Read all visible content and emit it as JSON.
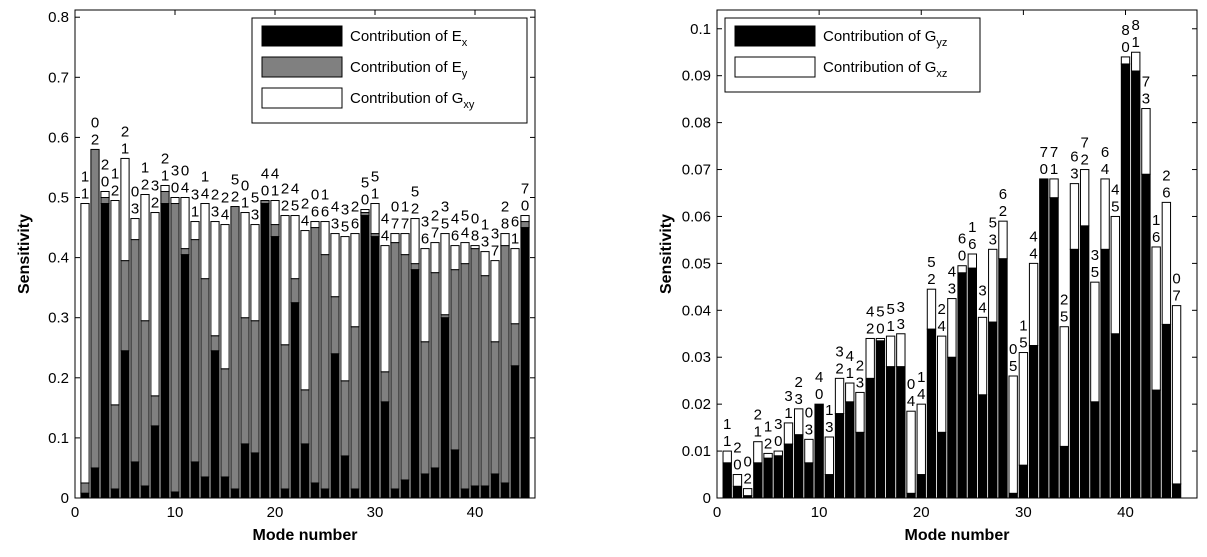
{
  "chart_data": [
    {
      "type": "stacked_bar",
      "ylabel": "Sensitivity",
      "xlabel": "Mode number",
      "xlim": [
        0,
        46
      ],
      "xticks": [
        0,
        10,
        20,
        30,
        40
      ],
      "ylim": [
        0,
        0.812
      ],
      "yticks": [
        0,
        0.1,
        0.2,
        0.3,
        0.4,
        0.5,
        0.6,
        0.7,
        0.8
      ],
      "legend": "upper right",
      "x": [
        1,
        2,
        3,
        4,
        5,
        6,
        7,
        8,
        9,
        10,
        11,
        12,
        13,
        14,
        15,
        16,
        17,
        18,
        19,
        20,
        21,
        22,
        23,
        24,
        25,
        26,
        27,
        28,
        29,
        30,
        31,
        32,
        33,
        34,
        35,
        36,
        37,
        38,
        39,
        40,
        41,
        42,
        43,
        44,
        45
      ],
      "series": [
        {
          "name": "Contribution of E",
          "subscript": "x",
          "color": "#000000",
          "values": [
            0.008,
            0.05,
            0.49,
            0.015,
            0.245,
            0.06,
            0.02,
            0.12,
            0.49,
            0.01,
            0.405,
            0.06,
            0.035,
            0.245,
            0.035,
            0.015,
            0.09,
            0.075,
            0.49,
            0.435,
            0.015,
            0.325,
            0.09,
            0.025,
            0.015,
            0.24,
            0.07,
            0.015,
            0.47,
            0.435,
            0.16,
            0.015,
            0.03,
            0.38,
            0.04,
            0.05,
            0.3,
            0.08,
            0.015,
            0.02,
            0.02,
            0.04,
            0.025,
            0.22,
            0.45
          ]
        },
        {
          "name": "Contribution of E",
          "subscript": "y",
          "color": "#808080",
          "values": [
            0.017,
            0.53,
            0.01,
            0.14,
            0.15,
            0.37,
            0.275,
            0.05,
            0.02,
            0.48,
            0.01,
            0.37,
            0.33,
            0.025,
            0.18,
            0.47,
            0.21,
            0.22,
            0.005,
            0.02,
            0.24,
            0.04,
            0.09,
            0.425,
            0.39,
            0.095,
            0.125,
            0.27,
            0.005,
            0.005,
            0.05,
            0.41,
            0.375,
            0.01,
            0.22,
            0.325,
            0.005,
            0.3,
            0.375,
            0.395,
            0.35,
            0.22,
            0.395,
            0.07,
            0.01
          ]
        },
        {
          "name": "Contribution of G",
          "subscript": "xy",
          "color": "#ffffff",
          "values": [
            0.465,
            0,
            0.01,
            0.34,
            0.17,
            0.035,
            0.21,
            0.305,
            0.01,
            0.01,
            0.085,
            0.03,
            0.125,
            0.19,
            0.24,
            0,
            0.175,
            0.16,
            0,
            0.04,
            0.215,
            0.105,
            0.265,
            0.01,
            0.055,
            0.105,
            0.24,
            0.155,
            0.005,
            0.05,
            0.21,
            0.015,
            0.035,
            0.075,
            0.155,
            0.05,
            0.135,
            0.04,
            0.035,
            0.005,
            0.04,
            0.135,
            0.02,
            0.125,
            0.01
          ]
        }
      ],
      "bar_labels": [
        [
          "1",
          "1"
        ],
        [
          "0",
          "2"
        ],
        [
          "2",
          "0"
        ],
        [
          "1",
          "2"
        ],
        [
          "2",
          "1"
        ],
        [
          "0",
          "3"
        ],
        [
          "1",
          "2"
        ],
        [
          "3",
          "2"
        ],
        [
          "2",
          "1"
        ],
        [
          "3",
          "0"
        ],
        [
          "0",
          "4"
        ],
        [
          "3",
          "1"
        ],
        [
          "1",
          "4"
        ],
        [
          "2",
          "3"
        ],
        [
          "2",
          "4"
        ],
        [
          "5",
          "2"
        ],
        [
          "0",
          "1"
        ],
        [
          "5",
          "3"
        ],
        [
          "4",
          "0"
        ],
        [
          "4",
          "1"
        ],
        [
          "2",
          "2"
        ],
        [
          "4",
          "5"
        ],
        [
          "2",
          "4"
        ],
        [
          "0",
          "6"
        ],
        [
          "1",
          "6"
        ],
        [
          "4",
          "3"
        ],
        [
          "3",
          "5"
        ],
        [
          "2",
          "6"
        ],
        [
          "5",
          "0"
        ],
        [
          "5",
          "1"
        ],
        [
          "4",
          "4"
        ],
        [
          "0",
          "7"
        ],
        [
          "1",
          "7"
        ],
        [
          "5",
          "2"
        ],
        [
          "3",
          "6"
        ],
        [
          "2",
          "7"
        ],
        [
          "3",
          "5"
        ],
        [
          "4",
          "6"
        ],
        [
          "5",
          "4"
        ],
        [
          "0",
          "8"
        ],
        [
          "1",
          "3"
        ],
        [
          "3",
          "7"
        ],
        [
          "2",
          "8"
        ],
        [
          "6",
          "1"
        ],
        [
          "7",
          "0"
        ]
      ]
    },
    {
      "type": "stacked_bar",
      "ylabel": "Sensitivity",
      "xlabel": "Mode number",
      "xlim": [
        0,
        47
      ],
      "xticks": [
        0,
        10,
        20,
        30,
        40
      ],
      "ylim": [
        0,
        0.104
      ],
      "yticks": [
        0,
        0.01,
        0.02,
        0.03,
        0.04,
        0.05,
        0.06,
        0.07,
        0.08,
        0.09,
        0.1
      ],
      "legend": "upper left",
      "x": [
        1,
        2,
        3,
        4,
        5,
        6,
        7,
        8,
        9,
        10,
        11,
        12,
        13,
        14,
        15,
        16,
        17,
        18,
        19,
        20,
        21,
        22,
        23,
        24,
        25,
        26,
        27,
        28,
        29,
        30,
        31,
        32,
        33,
        34,
        35,
        36,
        37,
        38,
        39,
        40,
        41,
        42,
        43,
        44,
        45
      ],
      "series": [
        {
          "name": "Contribution of G",
          "subscript": "yz",
          "color": "#000000",
          "values": [
            0.0075,
            0.0025,
            0.0005,
            0.0075,
            0.0085,
            0.009,
            0.0115,
            0.0135,
            0.0075,
            0.02,
            0.005,
            0.018,
            0.0205,
            0.014,
            0.0255,
            0.0335,
            0.028,
            0.028,
            0.001,
            0.005,
            0.036,
            0.014,
            0.03,
            0.048,
            0.049,
            0.022,
            0.0375,
            0.051,
            0.001,
            0.007,
            0.0325,
            0.068,
            0.064,
            0.011,
            0.053,
            0.058,
            0.0205,
            0.053,
            0.035,
            0.0925,
            0.091,
            0.069,
            0.023,
            0.037,
            0.003
          ]
        },
        {
          "name": "Contribution of G",
          "subscript": "xz",
          "color": "#ffffff",
          "values": [
            0.0025,
            0.0025,
            0.0015,
            0.0045,
            0.001,
            0.001,
            0.0045,
            0.0055,
            0.005,
            0,
            0.008,
            0.0075,
            0.004,
            0.0085,
            0.0085,
            0.0005,
            0.0065,
            0.007,
            0.0175,
            0.015,
            0.0085,
            0.0205,
            0.0125,
            0.0015,
            0.003,
            0.0165,
            0.0155,
            0.008,
            0.025,
            0.024,
            0.0175,
            0,
            0.004,
            0.0255,
            0.014,
            0.012,
            0.0255,
            0.015,
            0.025,
            0.0015,
            0.004,
            0.014,
            0.0305,
            0.026,
            0.038
          ]
        }
      ],
      "bar_labels": [
        [
          "1",
          "1"
        ],
        [
          "2",
          "0"
        ],
        [
          "0",
          "2"
        ],
        [
          "2",
          "1"
        ],
        [
          "1",
          "2"
        ],
        [
          "3",
          "0"
        ],
        [
          "3",
          "1"
        ],
        [
          "2",
          "3"
        ],
        [
          "0",
          "3"
        ],
        [
          "4",
          "0"
        ],
        [
          "1",
          "3"
        ],
        [
          "3",
          "2"
        ],
        [
          "4",
          "1"
        ],
        [
          "2",
          "3"
        ],
        [
          "4",
          "2"
        ],
        [
          "5",
          "0"
        ],
        [
          "5",
          "1"
        ],
        [
          "3",
          "3"
        ],
        [
          "0",
          "4"
        ],
        [
          "1",
          "4"
        ],
        [
          "5",
          "2"
        ],
        [
          "2",
          "4"
        ],
        [
          "4",
          "3"
        ],
        [
          "6",
          "0"
        ],
        [
          "1",
          "6"
        ],
        [
          "3",
          "4"
        ],
        [
          "5",
          "3"
        ],
        [
          "6",
          "2"
        ],
        [
          "0",
          "5"
        ],
        [
          "1",
          "5"
        ],
        [
          "4",
          "4"
        ],
        [
          "7",
          "0"
        ],
        [
          "7",
          "1"
        ],
        [
          "2",
          "5"
        ],
        [
          "6",
          "3"
        ],
        [
          "7",
          "2"
        ],
        [
          "3",
          "5"
        ],
        [
          "6",
          "4"
        ],
        [
          "4",
          "5"
        ],
        [
          "8",
          "0"
        ],
        [
          "8",
          "1"
        ],
        [
          "7",
          "3"
        ],
        [
          "1",
          "6"
        ],
        [
          "2",
          "6"
        ],
        [
          "0",
          "7"
        ]
      ]
    }
  ]
}
